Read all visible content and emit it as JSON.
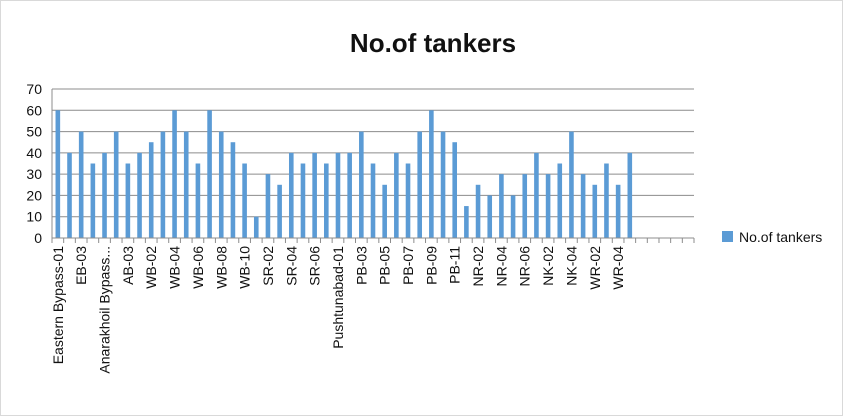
{
  "chart_data": {
    "type": "bar",
    "title": "No.of tankers",
    "xlabel": "",
    "ylabel": "",
    "ylim": [
      0,
      70
    ],
    "yticks": [
      0,
      10,
      20,
      30,
      40,
      50,
      60,
      70
    ],
    "grid": true,
    "legend": "right",
    "categories": [
      "Eastern Bypass-01",
      "",
      "EB-03",
      "",
      "Anarakhoil Bypass...",
      "",
      "AB-03",
      "",
      "WB-02",
      "",
      "WB-04",
      "",
      "WB-06",
      "",
      "WB-08",
      "",
      "WB-10",
      "",
      "SR-02",
      "",
      "SR-04",
      "",
      "SR-06",
      "",
      "Pushtunabad-01",
      "",
      "PB-03",
      "",
      "PB-05",
      "",
      "PB-07",
      "",
      "PB-09",
      "",
      "PB-11",
      "",
      "NR-02",
      "",
      "NR-04",
      "",
      "NR-06",
      "",
      "NK-02",
      "",
      "NK-04",
      "",
      "WR-02",
      "",
      "WR-04",
      "",
      "",
      "",
      "",
      "",
      ""
    ],
    "series": [
      {
        "name": "No.of tankers",
        "color": "#5b9bd5",
        "values": [
          60,
          40,
          50,
          35,
          40,
          50,
          35,
          40,
          45,
          50,
          60,
          50,
          35,
          60,
          50,
          45,
          35,
          10,
          30,
          25,
          40,
          35,
          40,
          35,
          40,
          40,
          50,
          35,
          25,
          40,
          35,
          50,
          60,
          50,
          45,
          15,
          25,
          20,
          30,
          20,
          30,
          40,
          30,
          35,
          50,
          30,
          25,
          35,
          25,
          40,
          null,
          null,
          null,
          null,
          null
        ]
      }
    ]
  }
}
